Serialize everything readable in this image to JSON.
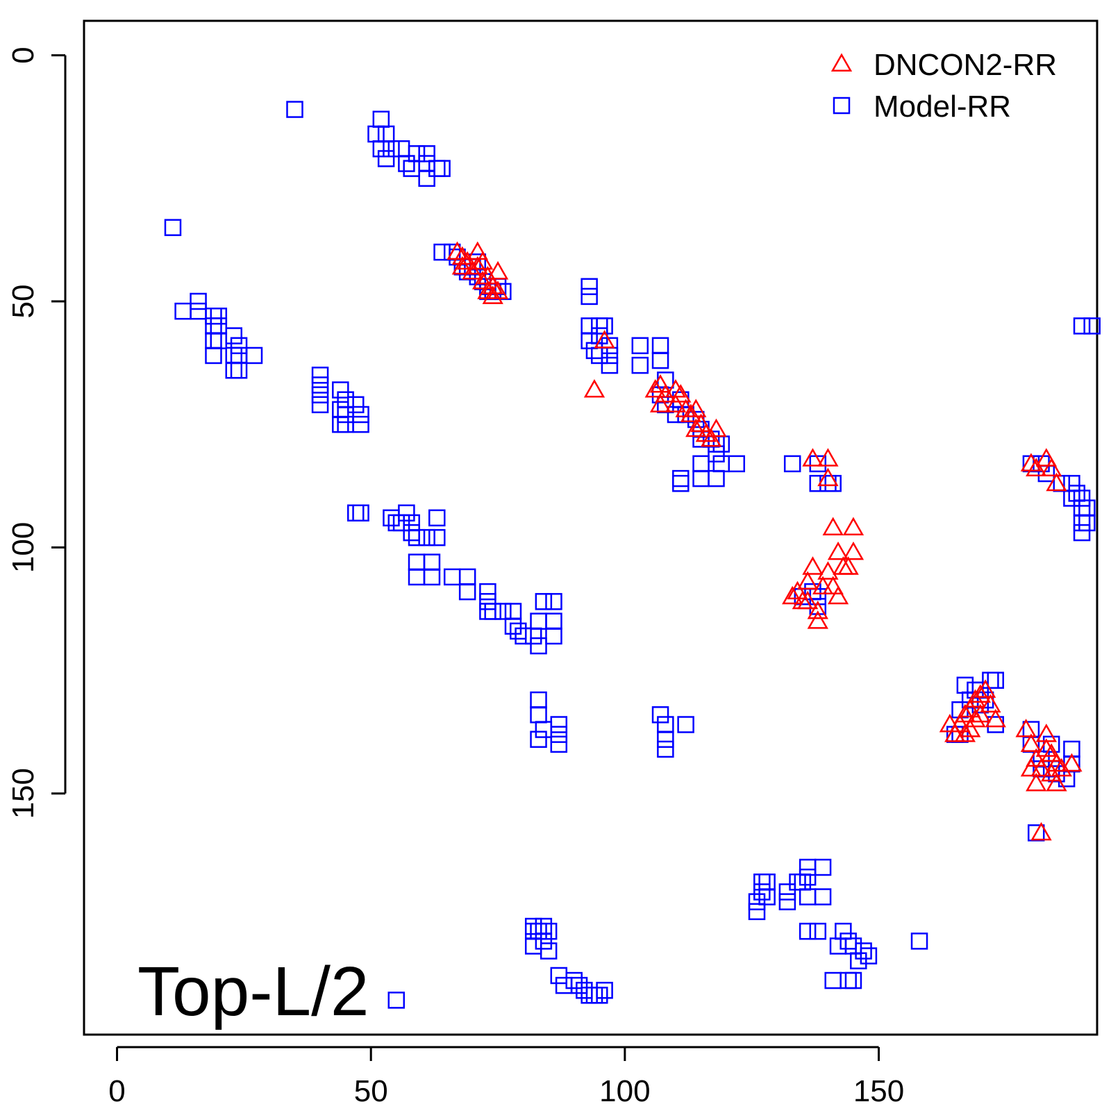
{
  "chart_data": {
    "type": "scatter",
    "title": "",
    "xlabel": "",
    "ylabel": "",
    "xlim": [
      -6.5,
      193
    ],
    "ylim": [
      -7,
      199
    ],
    "y_reversed": true,
    "x_ticks": [
      0,
      50,
      100,
      150
    ],
    "y_ticks": [
      0,
      50,
      100,
      150
    ],
    "grid": false,
    "legend_position": "top-right",
    "annotation": "Top-L/2",
    "series": [
      {
        "name": "DNCON2-RR",
        "marker": "triangle-open",
        "color": "#ff0000",
        "points": [
          [
            67,
            40
          ],
          [
            68,
            41
          ],
          [
            68,
            43
          ],
          [
            69,
            42
          ],
          [
            70,
            44
          ],
          [
            71,
            40
          ],
          [
            71,
            43
          ],
          [
            72,
            42
          ],
          [
            72,
            46
          ],
          [
            73,
            45
          ],
          [
            73,
            48
          ],
          [
            74,
            47
          ],
          [
            75,
            44
          ],
          [
            75,
            48
          ],
          [
            74,
            49
          ],
          [
            94,
            68
          ],
          [
            96,
            58
          ],
          [
            106,
            68
          ],
          [
            107,
            67
          ],
          [
            107,
            71
          ],
          [
            108,
            69
          ],
          [
            110,
            68
          ],
          [
            110,
            71
          ],
          [
            111,
            69
          ],
          [
            112,
            72
          ],
          [
            113,
            73
          ],
          [
            114,
            72
          ],
          [
            114,
            76
          ],
          [
            115,
            75
          ],
          [
            116,
            77
          ],
          [
            117,
            78
          ],
          [
            118,
            76
          ],
          [
            137,
            82
          ],
          [
            140,
            82
          ],
          [
            140,
            86
          ],
          [
            141,
            96
          ],
          [
            142,
            101
          ],
          [
            145,
            96
          ],
          [
            145,
            101
          ],
          [
            143,
            104
          ],
          [
            144,
            104
          ],
          [
            140,
            105
          ],
          [
            137,
            104
          ],
          [
            136,
            107
          ],
          [
            134,
            109
          ],
          [
            133,
            110
          ],
          [
            135,
            111
          ],
          [
            136,
            111
          ],
          [
            138,
            113
          ],
          [
            138,
            115
          ],
          [
            139,
            108
          ],
          [
            141,
            108
          ],
          [
            142,
            110
          ],
          [
            164,
            136
          ],
          [
            165,
            138
          ],
          [
            166,
            136
          ],
          [
            167,
            134
          ],
          [
            167,
            138
          ],
          [
            168,
            133
          ],
          [
            168,
            137
          ],
          [
            169,
            135
          ],
          [
            169,
            131
          ],
          [
            170,
            134
          ],
          [
            170,
            130
          ],
          [
            171,
            129
          ],
          [
            172,
            132
          ],
          [
            173,
            135
          ],
          [
            179,
            137
          ],
          [
            180,
            140
          ],
          [
            181,
            143
          ],
          [
            182,
            145
          ],
          [
            183,
            138
          ],
          [
            183,
            141
          ],
          [
            184,
            142
          ],
          [
            184,
            146
          ],
          [
            185,
            144
          ],
          [
            185,
            148
          ],
          [
            186,
            145
          ],
          [
            188,
            144
          ],
          [
            180,
            145
          ],
          [
            181,
            148
          ],
          [
            182,
            158
          ],
          [
            180,
            83
          ],
          [
            181,
            84
          ],
          [
            183,
            82
          ],
          [
            184,
            84
          ],
          [
            185,
            87
          ]
        ]
      },
      {
        "name": "Model-RR",
        "marker": "square-open",
        "color": "#0000ff",
        "points": [
          [
            35,
            11
          ],
          [
            11,
            35
          ],
          [
            52,
            13
          ],
          [
            51,
            16
          ],
          [
            53,
            16
          ],
          [
            52,
            19
          ],
          [
            54,
            19
          ],
          [
            53,
            21
          ],
          [
            56,
            19
          ],
          [
            57,
            22
          ],
          [
            58,
            23
          ],
          [
            59,
            20
          ],
          [
            61,
            20
          ],
          [
            61,
            22
          ],
          [
            61,
            25
          ],
          [
            63,
            23
          ],
          [
            64,
            23
          ],
          [
            16,
            50
          ],
          [
            13,
            52
          ],
          [
            16,
            52
          ],
          [
            19,
            53
          ],
          [
            20,
            53
          ],
          [
            19,
            55
          ],
          [
            20,
            55
          ],
          [
            19,
            58
          ],
          [
            20,
            58
          ],
          [
            23,
            57
          ],
          [
            24,
            59
          ],
          [
            23,
            61
          ],
          [
            24,
            61
          ],
          [
            23,
            64
          ],
          [
            24,
            64
          ],
          [
            19,
            61
          ],
          [
            27,
            61
          ],
          [
            40,
            65
          ],
          [
            40,
            67
          ],
          [
            40,
            69
          ],
          [
            40,
            71
          ],
          [
            44,
            68
          ],
          [
            45,
            70
          ],
          [
            44,
            72
          ],
          [
            45,
            73
          ],
          [
            47,
            71
          ],
          [
            48,
            73
          ],
          [
            44,
            75
          ],
          [
            45,
            75
          ],
          [
            48,
            75
          ],
          [
            64,
            40
          ],
          [
            66,
            40
          ],
          [
            67,
            41
          ],
          [
            68,
            43
          ],
          [
            69,
            44
          ],
          [
            70,
            43
          ],
          [
            71,
            42
          ],
          [
            71,
            45
          ],
          [
            72,
            46
          ],
          [
            73,
            47
          ],
          [
            73,
            48
          ],
          [
            74,
            48
          ],
          [
            75,
            47
          ],
          [
            76,
            48
          ],
          [
            93,
            47
          ],
          [
            93,
            49
          ],
          [
            93,
            55
          ],
          [
            95,
            55
          ],
          [
            93,
            58
          ],
          [
            94,
            60
          ],
          [
            95,
            61
          ],
          [
            95,
            57
          ],
          [
            96,
            55
          ],
          [
            97,
            59
          ],
          [
            97,
            61
          ],
          [
            97,
            63
          ],
          [
            103,
            59
          ],
          [
            103,
            63
          ],
          [
            107,
            59
          ],
          [
            107,
            62
          ],
          [
            108,
            66
          ],
          [
            107,
            69
          ],
          [
            108,
            71
          ],
          [
            111,
            70
          ],
          [
            110,
            73
          ],
          [
            112,
            73
          ],
          [
            114,
            74
          ],
          [
            115,
            76
          ],
          [
            115,
            78
          ],
          [
            117,
            78
          ],
          [
            118,
            79
          ],
          [
            119,
            79
          ],
          [
            118,
            81
          ],
          [
            119,
            83
          ],
          [
            122,
            83
          ],
          [
            111,
            86
          ],
          [
            111,
            87
          ],
          [
            115,
            83
          ],
          [
            115,
            86
          ],
          [
            118,
            86
          ],
          [
            47,
            93
          ],
          [
            48,
            93
          ],
          [
            54,
            94
          ],
          [
            55,
            95
          ],
          [
            56,
            95
          ],
          [
            57,
            93
          ],
          [
            58,
            95
          ],
          [
            58,
            97
          ],
          [
            59,
            98
          ],
          [
            61,
            98
          ],
          [
            63,
            94
          ],
          [
            63,
            98
          ],
          [
            59,
            103
          ],
          [
            59,
            106
          ],
          [
            62,
            103
          ],
          [
            62,
            106
          ],
          [
            66,
            106
          ],
          [
            69,
            106
          ],
          [
            69,
            109
          ],
          [
            73,
            109
          ],
          [
            73,
            111
          ],
          [
            73,
            113
          ],
          [
            74,
            113
          ],
          [
            76,
            113
          ],
          [
            78,
            113
          ],
          [
            78,
            116
          ],
          [
            79,
            117
          ],
          [
            80,
            118
          ],
          [
            82,
            118
          ],
          [
            83,
            120
          ],
          [
            83,
            115
          ],
          [
            84,
            111
          ],
          [
            86,
            111
          ],
          [
            86,
            115
          ],
          [
            86,
            118
          ],
          [
            83,
            131
          ],
          [
            83,
            134
          ],
          [
            84,
            137
          ],
          [
            83,
            139
          ],
          [
            87,
            136
          ],
          [
            87,
            138
          ],
          [
            87,
            140
          ],
          [
            107,
            134
          ],
          [
            108,
            136
          ],
          [
            108,
            139
          ],
          [
            108,
            141
          ],
          [
            112,
            136
          ],
          [
            133,
            83
          ],
          [
            138,
            83
          ],
          [
            138,
            87
          ],
          [
            140,
            87
          ],
          [
            141,
            87
          ],
          [
            135,
            110
          ],
          [
            137,
            109
          ],
          [
            138,
            110
          ],
          [
            138,
            112
          ],
          [
            165,
            138
          ],
          [
            166,
            138
          ],
          [
            166,
            133
          ],
          [
            167,
            128
          ],
          [
            168,
            131
          ],
          [
            169,
            129
          ],
          [
            170,
            129
          ],
          [
            170,
            132
          ],
          [
            171,
            131
          ],
          [
            172,
            127
          ],
          [
            173,
            127
          ],
          [
            173,
            136
          ],
          [
            180,
            83
          ],
          [
            182,
            83
          ],
          [
            183,
            85
          ],
          [
            186,
            87
          ],
          [
            188,
            87
          ],
          [
            188,
            90
          ],
          [
            189,
            89
          ],
          [
            190,
            90
          ],
          [
            190,
            92
          ],
          [
            190,
            95
          ],
          [
            190,
            97
          ],
          [
            191,
            92
          ],
          [
            191,
            95
          ],
          [
            188,
            141
          ],
          [
            188,
            144
          ],
          [
            187,
            147
          ],
          [
            185,
            146
          ],
          [
            184,
            145
          ],
          [
            184,
            140
          ],
          [
            182,
            143
          ],
          [
            180,
            137
          ],
          [
            180,
            140
          ],
          [
            182,
            145
          ],
          [
            181,
            158
          ],
          [
            190,
            55
          ],
          [
            192,
            55
          ],
          [
            127,
            168
          ],
          [
            128,
            168
          ],
          [
            127,
            170
          ],
          [
            126,
            172
          ],
          [
            126,
            174
          ],
          [
            128,
            171
          ],
          [
            132,
            170
          ],
          [
            132,
            172
          ],
          [
            134,
            168
          ],
          [
            135,
            168
          ],
          [
            136,
            167
          ],
          [
            136,
            165
          ],
          [
            139,
            165
          ],
          [
            139,
            171
          ],
          [
            136,
            171
          ],
          [
            138,
            178
          ],
          [
            143,
            178
          ],
          [
            144,
            180
          ],
          [
            142,
            181
          ],
          [
            145,
            181
          ],
          [
            146,
            184
          ],
          [
            147,
            182
          ],
          [
            148,
            183
          ],
          [
            145,
            188
          ],
          [
            144,
            188
          ],
          [
            141,
            188
          ],
          [
            136,
            178
          ],
          [
            158,
            180
          ],
          [
            82,
            177
          ],
          [
            82,
            178
          ],
          [
            83,
            178
          ],
          [
            84,
            177
          ],
          [
            85,
            178
          ],
          [
            84,
            180
          ],
          [
            85,
            182
          ],
          [
            82,
            181
          ],
          [
            87,
            187
          ],
          [
            88,
            189
          ],
          [
            90,
            188
          ],
          [
            91,
            189
          ],
          [
            92,
            190
          ],
          [
            93,
            191
          ],
          [
            94,
            191
          ],
          [
            95,
            191
          ],
          [
            96,
            190
          ],
          [
            55,
            192
          ]
        ]
      }
    ]
  }
}
